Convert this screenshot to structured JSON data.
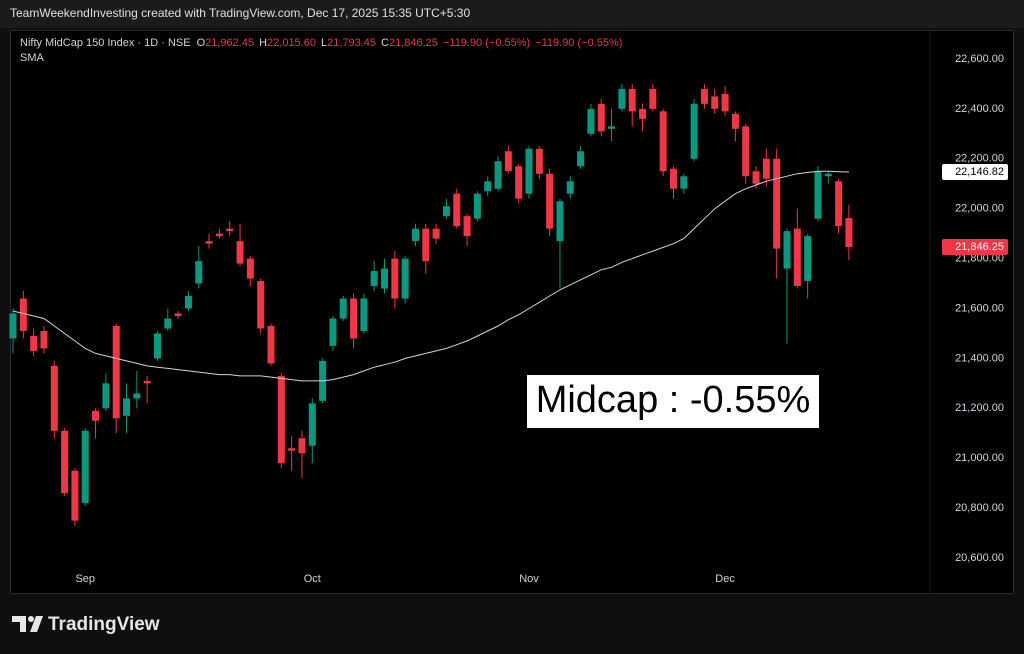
{
  "header": {
    "text": "TeamWeekendInvesting created with TradingView.com, Dec 17, 2025 15:35 UTC+5:30"
  },
  "chart_data": {
    "type": "candlestick",
    "title": "Nifty MidCap 150 Index · 1D · NSE",
    "legend_ohlc": [
      {
        "key": "O",
        "text": "21,962.45"
      },
      {
        "key": "H",
        "text": "22,015.60"
      },
      {
        "key": "L",
        "text": "21,793.45"
      },
      {
        "key": "C",
        "text": "21,846.25"
      }
    ],
    "change": [
      "−119.90 (−0.55%)",
      "−119.90 (−0.55%)"
    ],
    "up_color": "#089981",
    "down_color": "#f23645",
    "categories": [
      null,
      null,
      null,
      null,
      null,
      null,
      null,
      "Sep",
      null,
      null,
      null,
      null,
      null,
      null,
      null,
      null,
      null,
      null,
      null,
      null,
      null,
      null,
      null,
      null,
      null,
      null,
      null,
      null,
      null,
      "Oct",
      null,
      null,
      null,
      null,
      null,
      null,
      null,
      null,
      null,
      null,
      null,
      null,
      null,
      null,
      null,
      null,
      null,
      null,
      null,
      null,
      "Nov",
      null,
      null,
      null,
      null,
      null,
      null,
      null,
      null,
      null,
      null,
      null,
      null,
      null,
      null,
      null,
      null,
      null,
      null,
      "Dec",
      null,
      null,
      null,
      null,
      null,
      null,
      null,
      null,
      null,
      null,
      null,
      null
    ],
    "open": [
      21480,
      21640,
      21490,
      21510,
      21370,
      21110,
      20950,
      20820,
      21190,
      21200,
      21530,
      21170,
      21240,
      21310,
      21400,
      21520,
      21580,
      21600,
      21700,
      21870,
      21900,
      21920,
      21870,
      21800,
      21710,
      21530,
      21330,
      21040,
      21080,
      21050,
      21230,
      21450,
      21560,
      21640,
      21510,
      21690,
      21680,
      21800,
      21640,
      21870,
      21920,
      21920,
      21970,
      22060,
      21970,
      21960,
      22070,
      22080,
      22230,
      22170,
      22060,
      22240,
      22140,
      21870,
      22060,
      22170,
      22300,
      22420,
      22320,
      22400,
      22480,
      22400,
      22480,
      22390,
      22160,
      22080,
      22200,
      22480,
      22450,
      22460,
      22380,
      22330,
      22150,
      22200,
      22200,
      21760,
      21920,
      21710,
      21960,
      22130,
      22110,
      21962.45
    ],
    "high": [
      21600,
      21670,
      21520,
      21530,
      21390,
      21120,
      20960,
      21120,
      21200,
      21340,
      21540,
      21300,
      21350,
      21330,
      21510,
      21600,
      21590,
      21670,
      21850,
      21900,
      21920,
      21950,
      21940,
      21810,
      21720,
      21540,
      21340,
      21090,
      21110,
      21240,
      21400,
      21570,
      21650,
      21660,
      21660,
      21790,
      21800,
      21830,
      21810,
      21940,
      21940,
      21940,
      22040,
      22080,
      21980,
      22070,
      22130,
      22210,
      22250,
      22180,
      22250,
      22250,
      22160,
      22040,
      22130,
      22250,
      22420,
      22440,
      22400,
      22500,
      22500,
      22420,
      22500,
      22400,
      22170,
      22140,
      22440,
      22500,
      22480,
      22490,
      22390,
      22340,
      22170,
      22240,
      22240,
      21920,
      22000,
      21900,
      22170,
      22150,
      22120,
      22015.6
    ],
    "low": [
      21420,
      21480,
      21410,
      21420,
      21080,
      20850,
      20730,
      20810,
      21080,
      21190,
      21100,
      21100,
      21200,
      21220,
      21390,
      21510,
      21560,
      21590,
      21680,
      21840,
      21880,
      21890,
      21770,
      21690,
      21500,
      21370,
      20960,
      20950,
      20920,
      20980,
      21220,
      21430,
      21550,
      21440,
      21500,
      21670,
      21660,
      21600,
      21620,
      21850,
      21740,
      21860,
      21960,
      21920,
      21850,
      21950,
      22050,
      22070,
      22140,
      22020,
      22040,
      22120,
      21890,
      21680,
      22040,
      22160,
      22290,
      22290,
      22270,
      22390,
      22330,
      22310,
      22390,
      22130,
      22040,
      22060,
      22190,
      22400,
      22380,
      22370,
      22270,
      22100,
      22080,
      22090,
      21720,
      21460,
      21680,
      21640,
      21950,
      22100,
      21900,
      21793.45
    ],
    "close": [
      21580,
      21510,
      21430,
      21440,
      21110,
      20860,
      20750,
      21110,
      21150,
      21300,
      21160,
      21240,
      21260,
      21300,
      21500,
      21560,
      21570,
      21650,
      21790,
      21860,
      21890,
      21910,
      21780,
      21720,
      21520,
      21380,
      20980,
      21030,
      21020,
      21220,
      21390,
      21560,
      21640,
      21480,
      21640,
      21750,
      21760,
      21640,
      21800,
      21920,
      21790,
      21880,
      22010,
      21930,
      21890,
      22060,
      22110,
      22190,
      22150,
      22040,
      22240,
      22140,
      21920,
      22030,
      22110,
      22230,
      22400,
      22310,
      22330,
      22480,
      22390,
      22360,
      22400,
      22150,
      22080,
      22130,
      22420,
      22420,
      22400,
      22390,
      22320,
      22130,
      22100,
      22120,
      21840,
      21910,
      21690,
      21890,
      22150,
      22140,
      21930,
      21846.25
    ],
    "sma": {
      "name": "SMA",
      "color": "#d1d4dc",
      "values": [
        21590,
        21580,
        21570,
        21560,
        21530,
        21500,
        21470,
        21440,
        21420,
        21410,
        21400,
        21390,
        21380,
        21370,
        21365,
        21360,
        21355,
        21350,
        21345,
        21340,
        21335,
        21335,
        21330,
        21330,
        21330,
        21325,
        21320,
        21315,
        21310,
        21310,
        21310,
        21315,
        21325,
        21335,
        21350,
        21365,
        21375,
        21385,
        21400,
        21410,
        21420,
        21430,
        21440,
        21455,
        21470,
        21490,
        21510,
        21530,
        21555,
        21575,
        21600,
        21625,
        21650,
        21675,
        21695,
        21715,
        21735,
        21755,
        21765,
        21785,
        21800,
        21815,
        21830,
        21845,
        21860,
        21880,
        21920,
        21960,
        22000,
        22030,
        22060,
        22080,
        22095,
        22110,
        22120,
        22130,
        22140,
        22145,
        22150,
        22150,
        22148,
        22146.82
      ],
      "last_label": {
        "value": 22146.82,
        "label": "22,146.82"
      }
    },
    "last_price_label": {
      "value": 21846.25,
      "label": "21,846.25"
    },
    "ylim": [
      20464,
      22716
    ],
    "yticks": [
      {
        "value": 20600,
        "label": "20,600.00"
      },
      {
        "value": 20800,
        "label": "20,800.00"
      },
      {
        "value": 21000,
        "label": "21,000.00"
      },
      {
        "value": 21200,
        "label": "21,200.00"
      },
      {
        "value": 21400,
        "label": "21,400.00"
      },
      {
        "value": 21600,
        "label": "21,600.00"
      },
      {
        "value": 21800,
        "label": "21,800.00"
      },
      {
        "value": 22000,
        "label": "22,000.00"
      },
      {
        "value": 22200,
        "label": "22,200.00"
      },
      {
        "value": 22400,
        "label": "22,400.00"
      },
      {
        "value": 22600,
        "label": "22,600.00"
      }
    ],
    "grid": false,
    "annotation": "Midcap : -0.55%"
  },
  "footer": {
    "logo": "TradingView"
  }
}
